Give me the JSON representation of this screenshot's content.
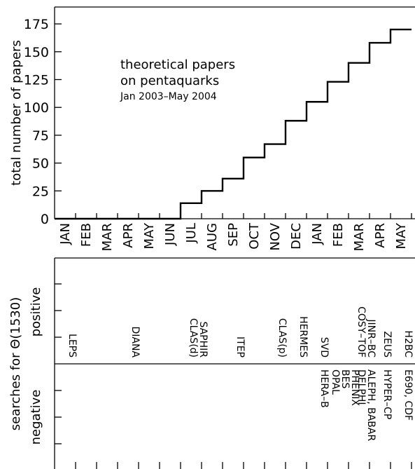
{
  "chart_data": [
    {
      "type": "line",
      "step": true,
      "title_lines": [
        "theoretical papers",
        "on pentaquarks",
        "Jan 2003–May 2004"
      ],
      "ylabel": "total number of papers",
      "ylim": [
        0,
        185
      ],
      "yticks": [
        "0",
        "25",
        "50",
        "75",
        "100",
        "125",
        "150",
        "175"
      ],
      "categories": [
        "JAN",
        "FEB",
        "MAR",
        "APR",
        "MAY",
        "JUN",
        "JUL",
        "AUG",
        "SEP",
        "OCT",
        "NOV",
        "DEC",
        "JAN",
        "FEB",
        "MAR",
        "APR",
        "MAY"
      ],
      "values": [
        0,
        0,
        0,
        0,
        0,
        0,
        14,
        25,
        36,
        55,
        67,
        88,
        105,
        123,
        140,
        158,
        170
      ],
      "grid": false
    },
    {
      "type": "table",
      "ylabel_lines": [
        "searches for Θ(1530)",
        "positive",
        "negative"
      ],
      "positive": [
        {
          "month_index": 0.5,
          "lines": [
            "LEPS"
          ]
        },
        {
          "month_index": 3.5,
          "lines": [
            "DIANA"
          ]
        },
        {
          "month_index": 6.5,
          "lines": [
            "CLAS(d)",
            "SAPHIR"
          ]
        },
        {
          "month_index": 8.5,
          "lines": [
            "ITEP"
          ]
        },
        {
          "month_index": 10.5,
          "lines": [
            "CLAS(p)"
          ]
        },
        {
          "month_index": 11.5,
          "lines": [
            "HERMES"
          ]
        },
        {
          "month_index": 12.5,
          "lines": [
            "SVD"
          ]
        },
        {
          "month_index": 14.5,
          "lines": [
            "COSY–TOF",
            "JINR–BC"
          ]
        },
        {
          "month_index": 15.5,
          "lines": [
            "ZEUS"
          ]
        },
        {
          "month_index": 16.5,
          "lines": [
            "H2BC"
          ]
        }
      ],
      "negative": [
        {
          "month_index": 12.5,
          "lines": [
            "HERA–B"
          ]
        },
        {
          "month_index": 13.5,
          "lines": [
            "OPAL",
            "BES",
            "PHENIX"
          ]
        },
        {
          "month_index": 14.5,
          "lines": [
            "DELPHI",
            "ALEPH, BABAR"
          ]
        },
        {
          "month_index": 15.5,
          "lines": [
            "HYPER–CP"
          ]
        },
        {
          "month_index": 16.5,
          "lines": [
            "E690, CDF"
          ]
        }
      ]
    }
  ]
}
